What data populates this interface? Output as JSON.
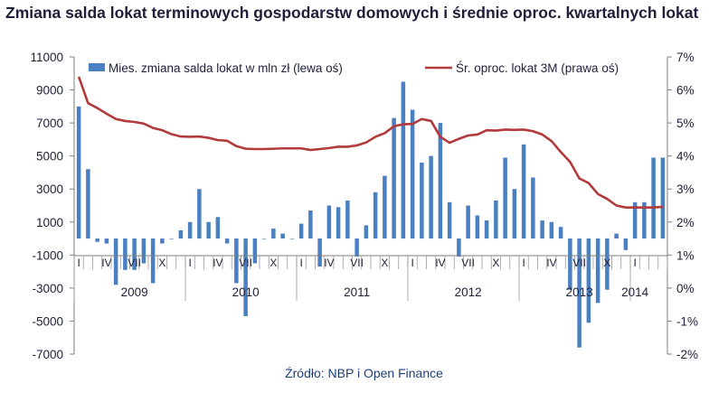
{
  "title": "Zmiana salda lokat terminowych gospodarstw domowych i średnie oproc. kwartalnych lokat",
  "source": "Źródło: NBP i Open Finance",
  "colors": {
    "bar": "#4a7fc1",
    "line": "#b23a3a",
    "axis": "#7f7f7f",
    "text": "#1f1f3a"
  },
  "chart_data": {
    "type": "bar+line",
    "title": "Zmiana salda lokat terminowych gospodarstw domowych i średnie oproc. kwartalnych lokat",
    "left_axis": {
      "min": -7000,
      "max": 11000,
      "ticks": [
        "11000",
        "9000",
        "7000",
        "5000",
        "3000",
        "1000",
        "-1000",
        "-3000",
        "-5000",
        "-7000"
      ]
    },
    "right_axis": {
      "min": -2,
      "max": 7,
      "ticks": [
        "7%",
        "6%",
        "5%",
        "4%",
        "3%",
        "2%",
        "1%",
        "0%",
        "-1%",
        "-2%"
      ]
    },
    "grid": false,
    "legend_position": "top",
    "month_labels": [
      {
        "i": 0,
        "text": "I"
      },
      {
        "i": 3,
        "text": "IV"
      },
      {
        "i": 6,
        "text": "VII"
      },
      {
        "i": 9,
        "text": "X"
      },
      {
        "i": 12,
        "text": "I"
      },
      {
        "i": 15,
        "text": "IV"
      },
      {
        "i": 18,
        "text": "VII"
      },
      {
        "i": 21,
        "text": "X"
      },
      {
        "i": 24,
        "text": "I"
      },
      {
        "i": 27,
        "text": "IV"
      },
      {
        "i": 30,
        "text": "VII"
      },
      {
        "i": 33,
        "text": "X"
      },
      {
        "i": 36,
        "text": "I"
      },
      {
        "i": 39,
        "text": "IV"
      },
      {
        "i": 42,
        "text": "VII"
      },
      {
        "i": 45,
        "text": "X"
      },
      {
        "i": 48,
        "text": "I"
      },
      {
        "i": 51,
        "text": "IV"
      },
      {
        "i": 54,
        "text": "VII"
      },
      {
        "i": 57,
        "text": "X"
      },
      {
        "i": 60,
        "text": "I"
      }
    ],
    "year_labels": [
      {
        "i": 6,
        "text": "2009"
      },
      {
        "i": 18,
        "text": "2010"
      },
      {
        "i": 30,
        "text": "2011"
      },
      {
        "i": 42,
        "text": "2012"
      },
      {
        "i": 54,
        "text": "2013"
      },
      {
        "i": 60,
        "text": "2014"
      }
    ],
    "series": [
      {
        "name": "Mies. zmiana salda lokat w mln zł (lewa oś)",
        "type": "bar",
        "axis": "left",
        "values": [
          8000,
          4200,
          -200,
          -300,
          -2800,
          -1900,
          -1900,
          -1500,
          -2700,
          -300,
          0,
          500,
          1000,
          3000,
          1000,
          1300,
          -300,
          -2700,
          -4700,
          -1500,
          0,
          600,
          300,
          0,
          900,
          1700,
          -1700,
          2000,
          1900,
          2300,
          -1100,
          800,
          2800,
          3800,
          7300,
          9500,
          7800,
          4600,
          5000,
          7000,
          2200,
          -1100,
          2000,
          1400,
          1100,
          2300,
          4900,
          3000,
          5700,
          3700,
          1100,
          1000,
          700,
          -3100,
          -6600,
          -5100,
          -3900,
          -3100,
          300,
          -700,
          2200,
          2200,
          4900,
          4900
        ]
      },
      {
        "name": "Śr. oproc. lokat 3M (prawa oś)",
        "type": "line",
        "axis": "right",
        "values": [
          6.4,
          5.6,
          5.45,
          5.28,
          5.12,
          5.06,
          5.03,
          4.98,
          4.85,
          4.78,
          4.66,
          4.59,
          4.58,
          4.59,
          4.55,
          4.48,
          4.46,
          4.3,
          4.22,
          4.21,
          4.21,
          4.22,
          4.23,
          4.23,
          4.23,
          4.18,
          4.21,
          4.24,
          4.28,
          4.28,
          4.32,
          4.41,
          4.58,
          4.69,
          4.9,
          4.96,
          4.97,
          5.12,
          5.06,
          4.58,
          4.4,
          4.52,
          4.62,
          4.65,
          4.78,
          4.77,
          4.8,
          4.79,
          4.8,
          4.75,
          4.65,
          4.45,
          4.12,
          3.82,
          3.32,
          3.18,
          2.85,
          2.7,
          2.5,
          2.44,
          2.44,
          2.44,
          2.44,
          2.46
        ]
      }
    ]
  }
}
